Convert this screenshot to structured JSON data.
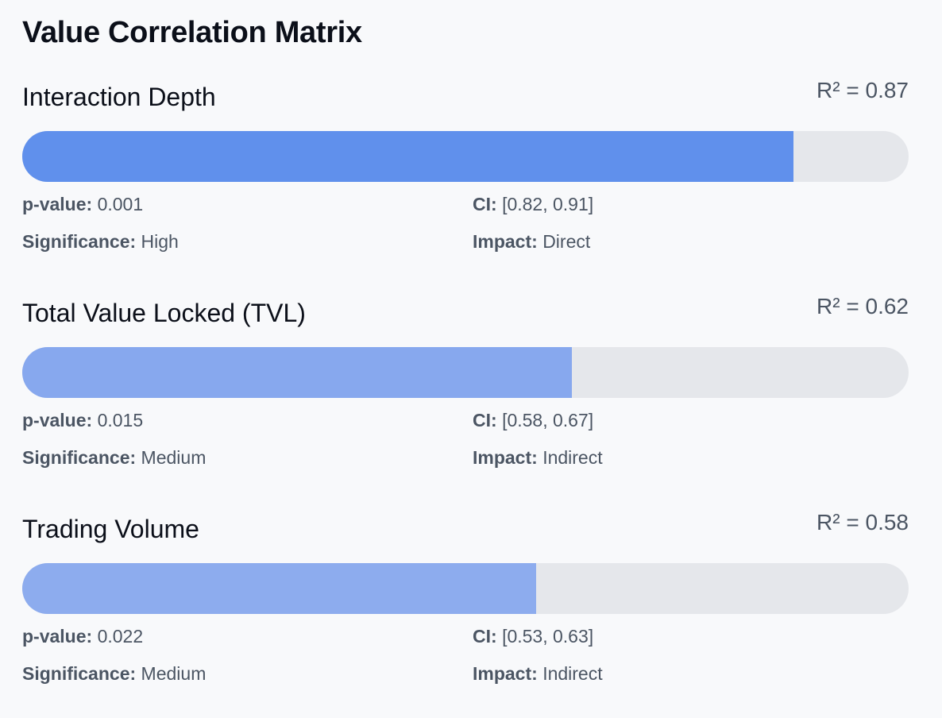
{
  "title": "Value Correlation Matrix",
  "metrics": [
    {
      "name": "Interaction Depth",
      "r2_text": "R² = 0.87",
      "r2": 0.87,
      "bar_color": "#6090ec",
      "stats": {
        "pvalue_label": "p-value:",
        "pvalue": "0.001",
        "ci_label": "CI:",
        "ci": "[0.82, 0.91]",
        "significance_label": "Significance:",
        "significance": "High",
        "impact_label": "Impact:",
        "impact": "Direct"
      }
    },
    {
      "name": "Total Value Locked (TVL)",
      "r2_text": "R² = 0.62",
      "r2": 0.62,
      "bar_color": "#87a8ee",
      "stats": {
        "pvalue_label": "p-value:",
        "pvalue": "0.015",
        "ci_label": "CI:",
        "ci": "[0.58, 0.67]",
        "significance_label": "Significance:",
        "significance": "Medium",
        "impact_label": "Impact:",
        "impact": "Indirect"
      }
    },
    {
      "name": "Trading Volume",
      "r2_text": "R² = 0.58",
      "r2": 0.58,
      "bar_color": "#8dacee",
      "stats": {
        "pvalue_label": "p-value:",
        "pvalue": "0.022",
        "ci_label": "CI:",
        "ci": "[0.53, 0.63]",
        "significance_label": "Significance:",
        "significance": "Medium",
        "impact_label": "Impact:",
        "impact": "Indirect"
      }
    }
  ]
}
